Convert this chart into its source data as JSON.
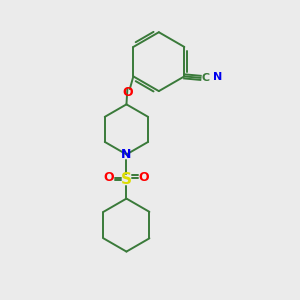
{
  "background_color": "#ebebeb",
  "bond_color": "#3a7a3a",
  "atom_colors": {
    "O": "#ff0000",
    "N": "#0000ee",
    "S": "#dddd00",
    "CN_N": "#0000ee"
  },
  "figsize": [
    3.0,
    3.0
  ],
  "dpi": 100
}
